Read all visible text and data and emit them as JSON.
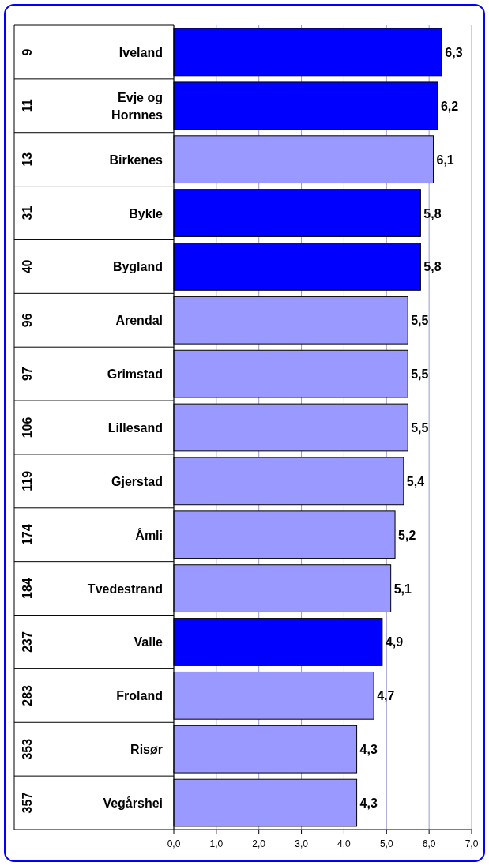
{
  "chart_data": {
    "type": "bar",
    "orientation": "horizontal",
    "categories": [
      "Iveland",
      "Evje og Hornnes",
      "Birkenes",
      "Bykle",
      "Bygland",
      "Arendal",
      "Grimstad",
      "Lillesand",
      "Gjerstad",
      "Åmli",
      "Tvedestrand",
      "Valle",
      "Froland",
      "Risør",
      "Vegårshei"
    ],
    "values": [
      6.3,
      6.2,
      6.1,
      5.8,
      5.8,
      5.5,
      5.5,
      5.5,
      5.4,
      5.2,
      5.1,
      4.9,
      4.7,
      4.3,
      4.3
    ],
    "colors": [
      "#0000ff",
      "#0000ff",
      "#9999ff",
      "#0000ff",
      "#0000ff",
      "#9999ff",
      "#9999ff",
      "#9999ff",
      "#9999ff",
      "#9999ff",
      "#9999ff",
      "#0000ff",
      "#9999ff",
      "#9999ff",
      "#9999ff"
    ],
    "value_labels": [
      "6,3",
      "6,2",
      "6,1",
      "5,8",
      "5,8",
      "5,5",
      "5,5",
      "5,5",
      "5,4",
      "5,2",
      "5,1",
      "4,9",
      "4,7",
      "4,3",
      "4,3"
    ],
    "xlim": [
      0,
      7
    ],
    "xticks": [
      {
        "value": 0,
        "label": "0,0"
      },
      {
        "value": 1,
        "label": "1,0"
      },
      {
        "value": 2,
        "label": "2,0"
      },
      {
        "value": 3,
        "label": "3,0"
      },
      {
        "value": 4,
        "label": "4,0"
      },
      {
        "value": 5,
        "label": "5,0"
      },
      {
        "value": 6,
        "label": "6,0"
      },
      {
        "value": 7,
        "label": "7,0"
      }
    ],
    "grid": "x",
    "annotations": [
      "9",
      "11",
      "13",
      "31",
      "40",
      "96",
      "97",
      "106",
      "119",
      "174",
      "184",
      "237",
      "283",
      "353",
      "357"
    ]
  }
}
